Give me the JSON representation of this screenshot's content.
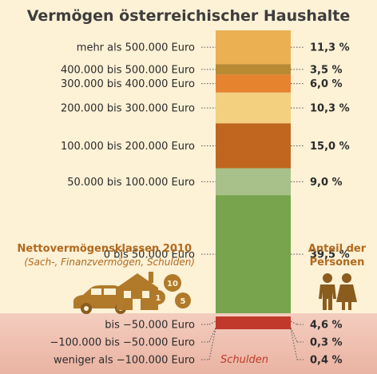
{
  "chart_data": {
    "type": "bar",
    "title": "Vermögen österreichischer Haushalte",
    "categories": [
      "mehr als 500.000 Euro",
      "400.000 bis 500.000 Euro",
      "300.000 bis 400.000 Euro",
      "200.000 bis 300.000 Euro",
      "100.000 bis 200.000 Euro",
      "50.000 bis 100.000 Euro",
      "0 bis 50.000 Euro",
      "bis −50.000 Euro",
      "−100.000 bis −50.000 Euro",
      "weniger als −100.000 Euro"
    ],
    "values": [
      11.3,
      3.5,
      6.0,
      10.3,
      15.0,
      9.0,
      39.5,
      4.6,
      0.3,
      0.4
    ],
    "value_labels": [
      "11,3 %",
      "3,5 %",
      "6,0 %",
      "10,3 %",
      "15,0 %",
      "9,0 %",
      "39,5 %",
      "4,6 %",
      "0,3 %",
      "0,4 %"
    ],
    "colors": [
      "#eab052",
      "#b88a34",
      "#e5832f",
      "#f3d080",
      "#c0661f",
      "#a8c08a",
      "#77a44d",
      "#c0392b",
      "#c0392b",
      "#c0392b"
    ],
    "positive_heading": "Nettovermögensklassen 2010",
    "positive_subheading": "(Sach-, Finanzvermögen, Schulden)",
    "share_heading_line1": "Anteil der",
    "share_heading_line2": "Personen",
    "debt_label": "Schulden",
    "coin_labels": [
      "10",
      "1",
      "5"
    ]
  },
  "colors": {
    "background": "#fdf1d6",
    "debt_band": "#f1c3b5",
    "accent": "#b06a1e",
    "icon": "#b07a2a"
  }
}
